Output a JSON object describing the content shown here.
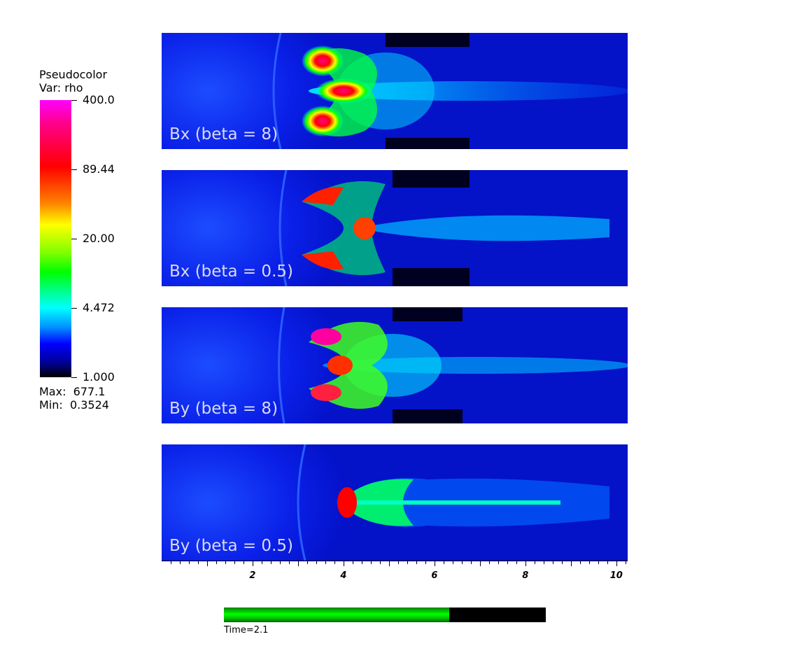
{
  "legend": {
    "title_line1": "Pseudocolor",
    "title_line2": "Var: rho",
    "ticks": [
      "400.0",
      "89.44",
      "20.00",
      "4.472",
      "1.000"
    ],
    "max_label": "Max:  677.1",
    "min_label": "Min:  0.3524"
  },
  "chart_data": {
    "type": "heatmap",
    "variable": "rho",
    "colorbar": {
      "min": 1.0,
      "max": 400.0,
      "ticks": [
        400.0,
        89.44,
        20.0,
        4.472,
        1.0
      ],
      "scale": "log"
    },
    "data_max": 677.1,
    "data_min": 0.3524,
    "panels": [
      {
        "label": "Bx (beta = 8)"
      },
      {
        "label": "Bx (beta = 0.5)"
      },
      {
        "label": "By (beta = 8)"
      },
      {
        "label": "By (beta = 0.5)"
      }
    ],
    "x_axis": {
      "range": [
        0,
        10.25
      ],
      "major_ticks": [
        2,
        4,
        6,
        8,
        10
      ],
      "tick_labels": [
        "2",
        "4",
        "6",
        "8",
        "10"
      ]
    },
    "time": {
      "label": "Time=2.1",
      "progress": 0.7
    }
  },
  "colors": {
    "background": "#ffffff",
    "timebar_fill": "#00ff00",
    "timebar_track": "#000000"
  }
}
